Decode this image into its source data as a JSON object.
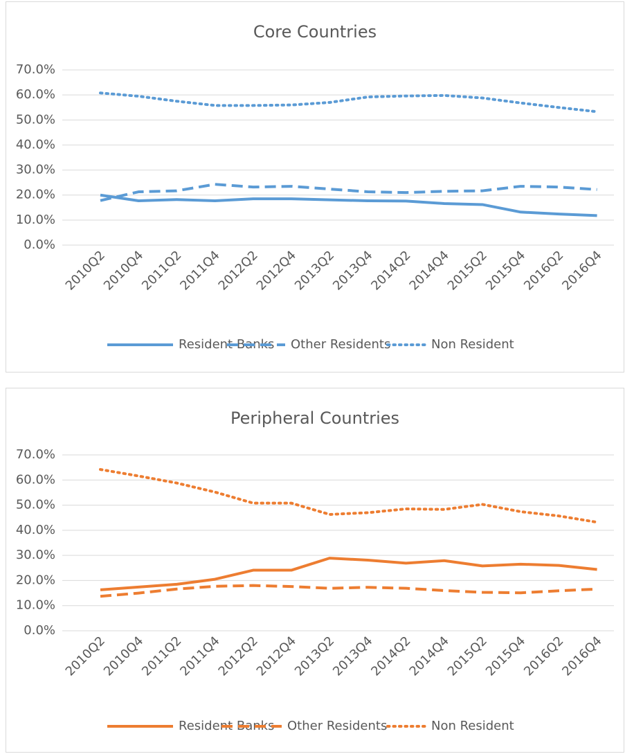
{
  "chart_data": [
    {
      "type": "line",
      "title": "Core Countries",
      "categories": [
        "2010Q2",
        "2010Q4",
        "2011Q2",
        "2011Q4",
        "2012Q2",
        "2012Q4",
        "2013Q2",
        "2013Q4",
        "2014Q2",
        "2014Q4",
        "2015Q2",
        "2015Q4",
        "2016Q2",
        "2016Q4"
      ],
      "series": [
        {
          "name": "Resident Banks",
          "color": "#5b9bd5",
          "line_style": "solid",
          "values": [
            20.0,
            17.7,
            18.2,
            17.7,
            18.5,
            18.5,
            18.1,
            17.7,
            17.6,
            16.6,
            16.2,
            13.2,
            12.4,
            11.8
          ]
        },
        {
          "name": "Other Residents",
          "color": "#5b9bd5",
          "line_style": "dashed",
          "values": [
            17.8,
            21.3,
            21.7,
            24.3,
            23.2,
            23.5,
            22.4,
            21.3,
            21.0,
            21.5,
            21.7,
            23.5,
            23.2,
            22.2
          ]
        },
        {
          "name": "Non Resident",
          "color": "#5b9bd5",
          "line_style": "dotted",
          "values": [
            60.8,
            59.5,
            57.5,
            55.8,
            55.8,
            56.0,
            57.0,
            59.2,
            59.6,
            59.8,
            58.8,
            56.8,
            55.0,
            53.3
          ]
        }
      ],
      "ylim": [
        0,
        70
      ],
      "yticks": [
        {
          "value": 0,
          "label": "0.0%"
        },
        {
          "value": 10,
          "label": "10.0%"
        },
        {
          "value": 20,
          "label": "20.0%"
        },
        {
          "value": 30,
          "label": "30.0%"
        },
        {
          "value": 40,
          "label": "40.0%"
        },
        {
          "value": 50,
          "label": "50.0%"
        },
        {
          "value": 60,
          "label": "60.0%"
        },
        {
          "value": 70,
          "label": "70.0%"
        }
      ],
      "grid": true,
      "legend": "bottom"
    },
    {
      "type": "line",
      "title": "Peripheral Countries",
      "categories": [
        "2010Q2",
        "2010Q4",
        "2011Q2",
        "2011Q4",
        "2012Q2",
        "2012Q4",
        "2013Q2",
        "2013Q4",
        "2014Q2",
        "2014Q4",
        "2015Q2",
        "2015Q4",
        "2016Q2",
        "2016Q4"
      ],
      "series": [
        {
          "name": "Resident Banks",
          "color": "#ed7d31",
          "line_style": "solid",
          "values": [
            16.3,
            17.4,
            18.5,
            20.5,
            24.1,
            24.1,
            28.9,
            28.1,
            26.9,
            27.9,
            25.8,
            26.5,
            26.0,
            24.4
          ]
        },
        {
          "name": "Other Residents",
          "color": "#ed7d31",
          "line_style": "dashed",
          "values": [
            13.7,
            15.0,
            16.6,
            17.7,
            18.0,
            17.6,
            16.9,
            17.3,
            16.9,
            16.0,
            15.3,
            15.1,
            15.9,
            16.6
          ]
        },
        {
          "name": "Non Resident",
          "color": "#ed7d31",
          "line_style": "dotted",
          "values": [
            64.2,
            61.6,
            58.8,
            55.2,
            50.8,
            50.8,
            46.3,
            47.0,
            48.5,
            48.3,
            50.3,
            47.4,
            45.7,
            43.2
          ]
        }
      ],
      "ylim": [
        0,
        70
      ],
      "yticks": [
        {
          "value": 0,
          "label": "0.0%"
        },
        {
          "value": 10,
          "label": "10.0%"
        },
        {
          "value": 20,
          "label": "20.0%"
        },
        {
          "value": 30,
          "label": "30.0%"
        },
        {
          "value": 40,
          "label": "40.0%"
        },
        {
          "value": 50,
          "label": "50.0%"
        },
        {
          "value": 60,
          "label": "60.0%"
        },
        {
          "value": 70,
          "label": "70.0%"
        }
      ],
      "grid": true,
      "legend": "bottom"
    }
  ]
}
